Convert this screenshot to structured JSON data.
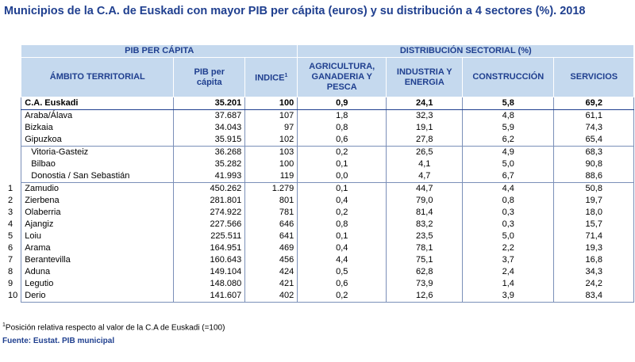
{
  "title": "Municipios de la C.A. de Euskadi con mayor PIB per cápita (euros) y su distribución a 4 sectores (%). 2018",
  "headers": {
    "group_pib": "PIB PER CÁPITA",
    "group_dist": "DISTRIBUCIÓN SECTORIAL (%)",
    "ambito": "ÁMBITO TERRITORIAL",
    "pib": "PIB per cápita",
    "indice": "INDICE",
    "indice_sup": "1",
    "agri": "AGRICULTURA, GANADERIA Y PESCA",
    "industria": "INDUSTRIA Y ENERGIA",
    "construccion": "CONSTRUCCIÓN",
    "servicios": "SERVICIOS"
  },
  "total": {
    "name": "C.A. Euskadi",
    "pib": "35.201",
    "indice": "100",
    "agri": "0,9",
    "ind": "24,1",
    "cons": "5,8",
    "serv": "69,2"
  },
  "provinces": [
    {
      "name": "Araba/Álava",
      "pib": "37.687",
      "indice": "107",
      "agri": "1,8",
      "ind": "32,3",
      "cons": "4,8",
      "serv": "61,1"
    },
    {
      "name": "Bizkaia",
      "pib": "34.043",
      "indice": "97",
      "agri": "0,8",
      "ind": "19,1",
      "cons": "5,9",
      "serv": "74,3"
    },
    {
      "name": "Gipuzkoa",
      "pib": "35.915",
      "indice": "102",
      "agri": "0,6",
      "ind": "27,8",
      "cons": "6,2",
      "serv": "65,4"
    }
  ],
  "capitals": [
    {
      "name": "Vitoria-Gasteiz",
      "pib": "36.268",
      "indice": "103",
      "agri": "0,2",
      "ind": "26,5",
      "cons": "4,9",
      "serv": "68,3"
    },
    {
      "name": "Bilbao",
      "pib": "35.282",
      "indice": "100",
      "agri": "0,1",
      "ind": "4,1",
      "cons": "5,0",
      "serv": "90,8"
    },
    {
      "name": "Donostia / San Sebastián",
      "pib": "41.993",
      "indice": "119",
      "agri": "0,0",
      "ind": "4,7",
      "cons": "6,7",
      "serv": "88,6"
    }
  ],
  "municipalities": [
    {
      "rank": "1",
      "name": "Zamudio",
      "pib": "450.262",
      "indice": "1.279",
      "agri": "0,1",
      "ind": "44,7",
      "cons": "4,4",
      "serv": "50,8"
    },
    {
      "rank": "2",
      "name": "Zierbena",
      "pib": "281.801",
      "indice": "801",
      "agri": "0,4",
      "ind": "79,0",
      "cons": "0,8",
      "serv": "19,7"
    },
    {
      "rank": "3",
      "name": "Olaberria",
      "pib": "274.922",
      "indice": "781",
      "agri": "0,2",
      "ind": "81,4",
      "cons": "0,3",
      "serv": "18,0"
    },
    {
      "rank": "4",
      "name": "Ajangiz",
      "pib": "227.566",
      "indice": "646",
      "agri": "0,8",
      "ind": "83,2",
      "cons": "0,3",
      "serv": "15,7"
    },
    {
      "rank": "5",
      "name": "Loiu",
      "pib": "225.511",
      "indice": "641",
      "agri": "0,1",
      "ind": "23,5",
      "cons": "5,0",
      "serv": "71,4"
    },
    {
      "rank": "6",
      "name": "Arama",
      "pib": "164.951",
      "indice": "469",
      "agri": "0,4",
      "ind": "78,1",
      "cons": "2,2",
      "serv": "19,3"
    },
    {
      "rank": "7",
      "name": "Berantevilla",
      "pib": "160.643",
      "indice": "456",
      "agri": "4,4",
      "ind": "75,1",
      "cons": "3,7",
      "serv": "16,8"
    },
    {
      "rank": "8",
      "name": "Aduna",
      "pib": "149.104",
      "indice": "424",
      "agri": "0,5",
      "ind": "62,8",
      "cons": "2,4",
      "serv": "34,3"
    },
    {
      "rank": "9",
      "name": "Legutio",
      "pib": "148.080",
      "indice": "421",
      "agri": "0,6",
      "ind": "73,9",
      "cons": "1,4",
      "serv": "24,2"
    },
    {
      "rank": "10",
      "name": "Derio",
      "pib": "141.607",
      "indice": "402",
      "agri": "0,2",
      "ind": "12,6",
      "cons": "3,9",
      "serv": "83,4"
    }
  ],
  "footnote_sup": "1",
  "footnote": "Posición relativa respecto al valor de la C.A de Euskadi (=100)",
  "source": "Fuente: Eustat. PIB municipal"
}
